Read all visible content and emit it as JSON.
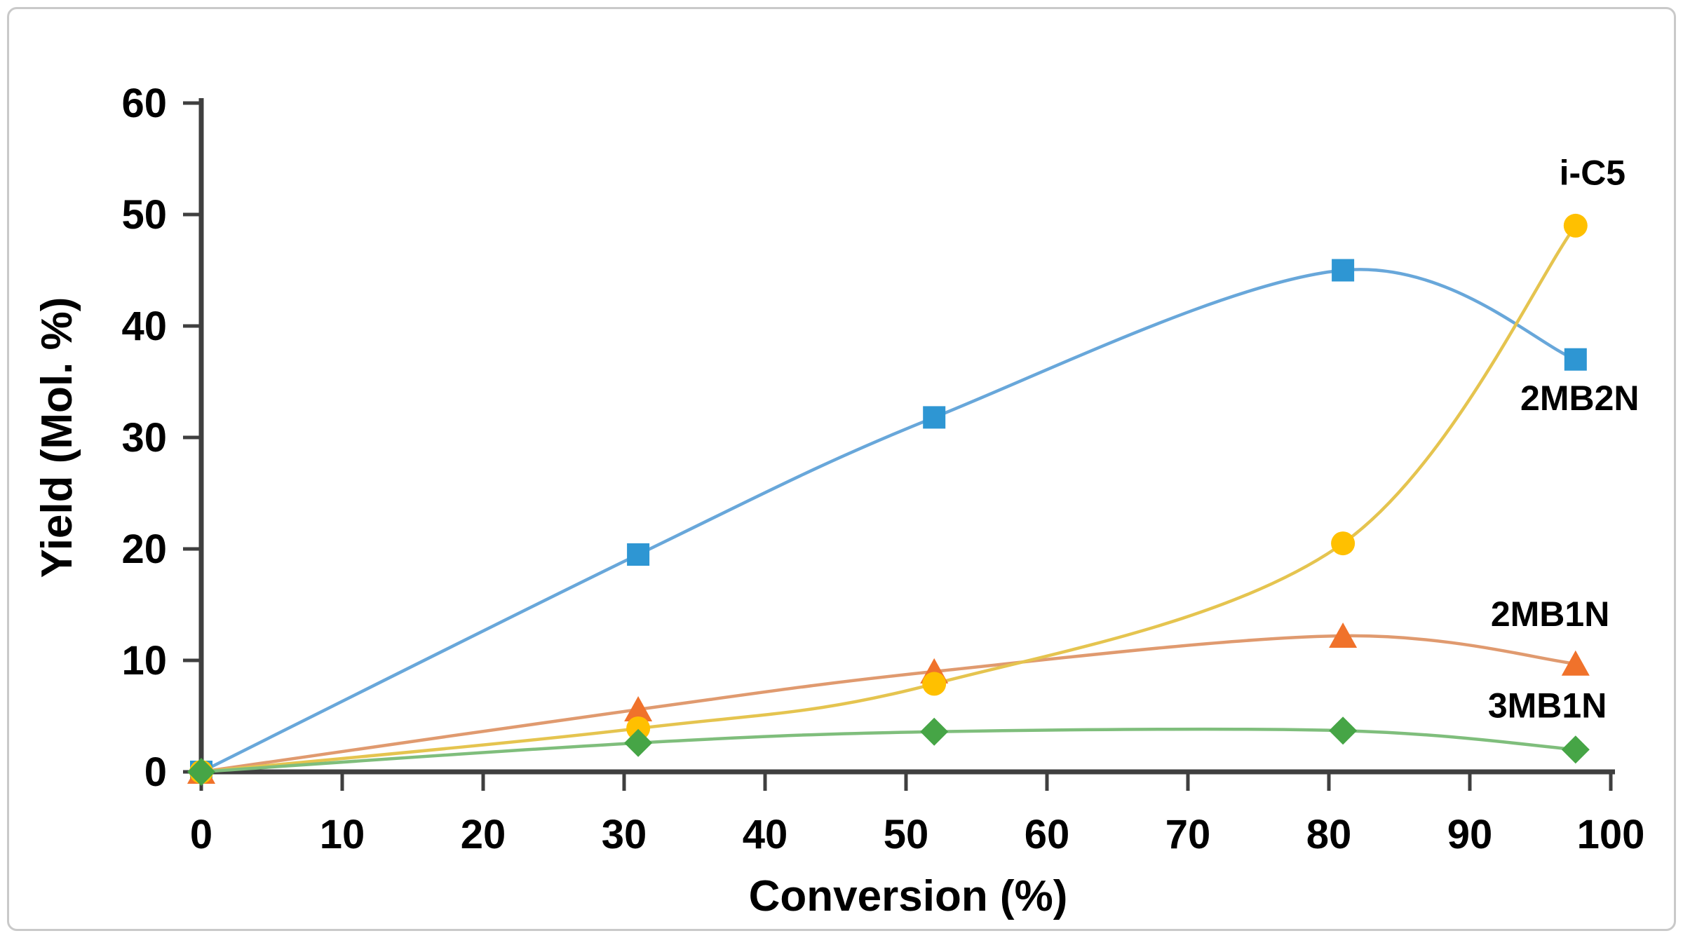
{
  "chart_data": {
    "type": "line",
    "title": "",
    "xlabel": "Conversion (%)",
    "ylabel": "Yield (Mol. %)",
    "x": [
      0,
      31,
      52,
      81,
      97.5
    ],
    "xlim": [
      0,
      100
    ],
    "ylim": [
      0,
      60
    ],
    "xticks": [
      0,
      10,
      20,
      30,
      40,
      50,
      60,
      70,
      80,
      90,
      100
    ],
    "yticks": [
      0,
      10,
      20,
      30,
      40,
      50,
      60
    ],
    "grid": false,
    "legend_position": "inline-labels-right",
    "line_style": "smooth",
    "axis_color": "#3f3f3f",
    "text_color": "#000000",
    "series": [
      {
        "name": "2MB2N",
        "marker": "square",
        "marker_color": "#2e96d3",
        "line_color": "#68a7da",
        "values": [
          0,
          19.5,
          31.8,
          45.0,
          37.0
        ]
      },
      {
        "name": "2MB1N",
        "marker": "triangle",
        "marker_color": "#f0722b",
        "line_color": "#e09a6f",
        "values": [
          0,
          5.6,
          9.0,
          12.2,
          9.7
        ]
      },
      {
        "name": "i-C5",
        "marker": "circle",
        "marker_color": "#ffc000",
        "line_color": "#e5c44f",
        "values": [
          0,
          3.9,
          7.9,
          20.5,
          49.0
        ]
      },
      {
        "name": "3MB1N",
        "marker": "diamond",
        "marker_color": "#46a546",
        "line_color": "#7fbe7c",
        "values": [
          0,
          2.6,
          3.6,
          3.7,
          2.0
        ]
      }
    ],
    "annotations": [
      {
        "text": "i-C5",
        "x": 98.7,
        "y": 53.8
      },
      {
        "text": "2MB2N",
        "x": 97.8,
        "y": 33.6
      },
      {
        "text": "2MB1N",
        "x": 95.7,
        "y": 14.2
      },
      {
        "text": "3MB1N",
        "x": 95.5,
        "y": 6.0
      }
    ]
  }
}
